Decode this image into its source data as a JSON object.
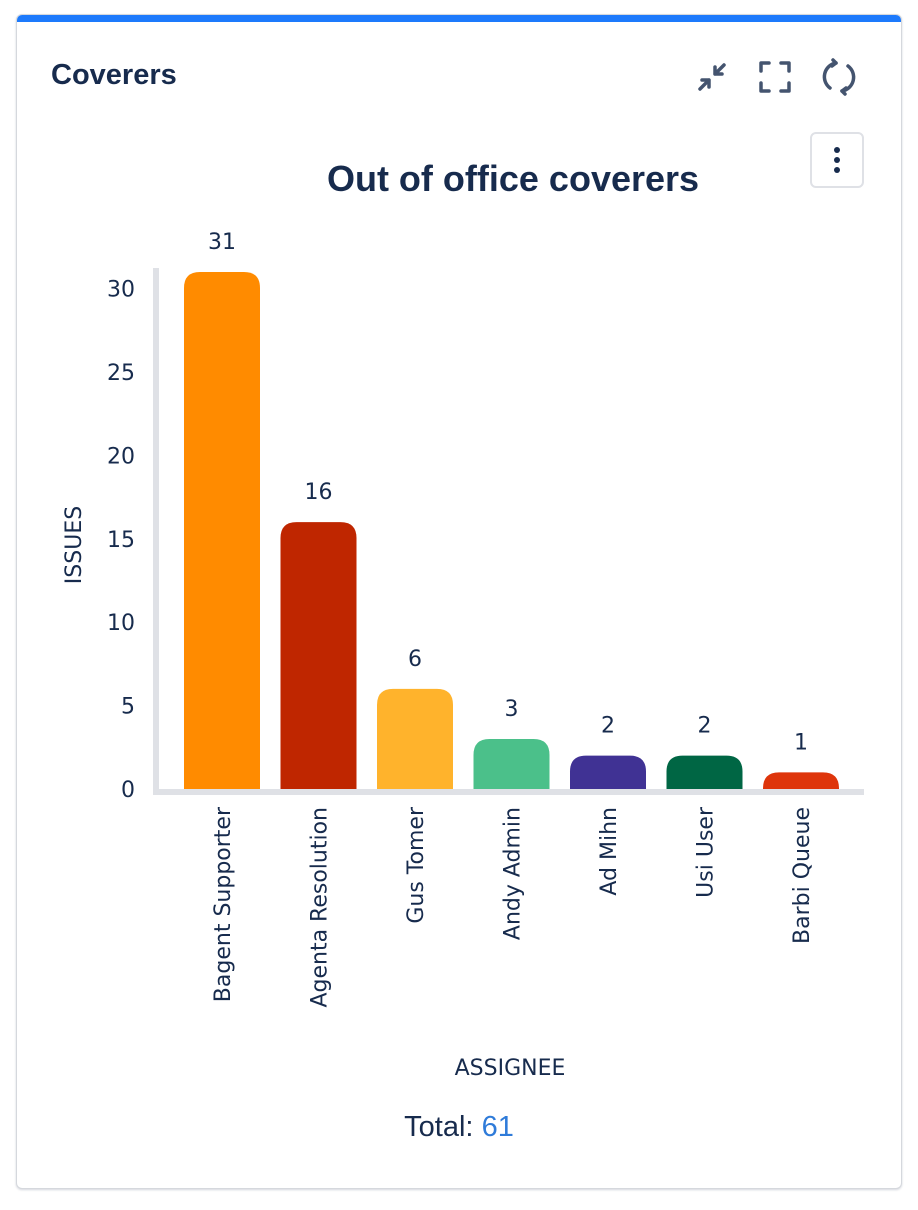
{
  "gadget": {
    "title": "Coverers",
    "accent_color": "#1d7afc",
    "toolbar": {
      "minimize_icon": "minimize-arrows-icon",
      "fullscreen_icon": "fullscreen-icon",
      "refresh_icon": "refresh-icon",
      "menu_icon": "more-vertical-icon"
    }
  },
  "chart_data": {
    "type": "bar",
    "title": "Out of office coverers",
    "xlabel": "ASSIGNEE",
    "ylabel": "ISSUES",
    "categories": [
      "Bagent Supporter",
      "Agenta Resolution",
      "Gus Tomer",
      "Andy Admin",
      "Ad Mihn",
      "Usi User",
      "Barbi Queue"
    ],
    "values": [
      31,
      16,
      6,
      3,
      2,
      2,
      1
    ],
    "colors": [
      "#ff8b00",
      "#bf2600",
      "#ffb32c",
      "#4bc08a",
      "#403294",
      "#006644",
      "#de350b"
    ],
    "yticks": [
      0,
      5,
      10,
      15,
      20,
      25,
      30
    ],
    "ylim": [
      0,
      31
    ],
    "grid": false,
    "data_labels": true
  },
  "footer": {
    "total_label": "Total:",
    "total_value": "61"
  }
}
